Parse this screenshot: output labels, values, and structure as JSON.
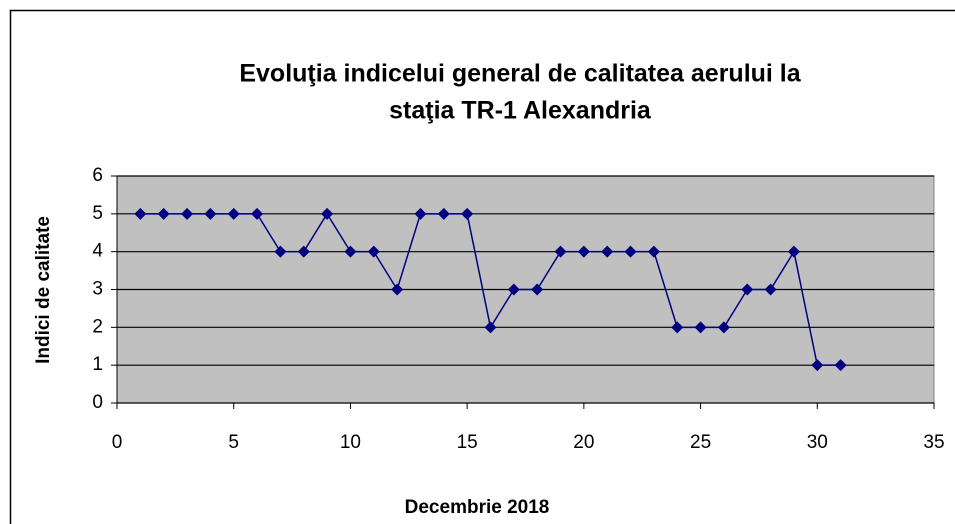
{
  "chart_data": {
    "type": "line",
    "title": [
      "Evoluţia indicelui general de calitatea aerului la",
      "staţia TR-1 Alexandria"
    ],
    "x_label": "Decembrie 2018",
    "y_label": "Indici de calitate",
    "x": [
      1,
      2,
      3,
      4,
      5,
      6,
      7,
      8,
      9,
      10,
      11,
      12,
      13,
      14,
      15,
      16,
      17,
      18,
      19,
      20,
      21,
      22,
      23,
      24,
      25,
      26,
      27,
      28,
      29,
      30,
      31
    ],
    "series": [
      {
        "color": "#000080",
        "values": [
          5,
          5,
          5,
          5,
          5,
          5,
          4,
          4,
          5,
          4,
          4,
          3,
          5,
          5,
          5,
          2,
          3,
          3,
          4,
          4,
          4,
          4,
          4,
          2,
          2,
          2,
          3,
          3,
          4,
          1,
          1
        ]
      }
    ],
    "xlim": [
      0,
      35
    ],
    "xticks": [
      0,
      5,
      10,
      15,
      20,
      25,
      30,
      35
    ],
    "ylim": [
      0,
      6
    ],
    "yticks": [
      0,
      1,
      2,
      3,
      4,
      5,
      6
    ],
    "grid": true,
    "plot_background": "#c0c0c0"
  }
}
